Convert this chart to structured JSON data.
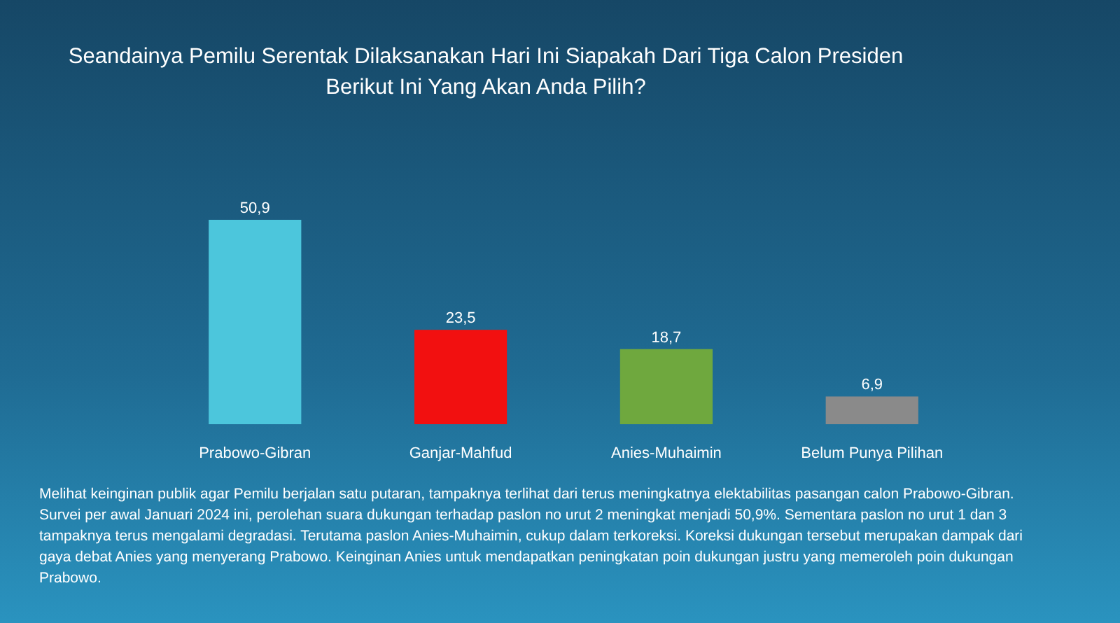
{
  "chart_data": {
    "type": "bar",
    "title": "Seandainya Pemilu Serentak Dilaksanakan Hari Ini Siapakah Dari Tiga Calon Presiden Berikut Ini Yang Akan Anda Pilih?",
    "categories": [
      "Prabowo-Gibran",
      "Ganjar-Mahfud",
      "Anies-Muhaimin",
      "Belum Punya Pilihan"
    ],
    "values": [
      50.9,
      23.5,
      18.7,
      6.9
    ],
    "colors": [
      "#4cc6dc",
      "#f21010",
      "#6fa83e",
      "#8a8a8a"
    ],
    "value_labels": [
      "50,9",
      "23,5",
      "18,7",
      "6,9"
    ],
    "annotations": [
      "Melihat keinginan publik agar Pemilu berjalan satu putaran, tampaknya terlihat dari terus meningkatnya elektabilitas pasangan calon Prabowo-Gibran. Survei per awal Januari 2024 ini, perolehan suara dukungan  terhadap paslon no urut 2 meningkat menjadi 50,9%. Sementara paslon no urut 1 dan 3 tampaknya terus mengalami degradasi. Terutama paslon Anies-Muhaimin, cukup dalam terkoreksi. Koreksi dukungan tersebut merupakan dampak dari gaya debat Anies yang menyerang Prabowo. Keinginan Anies untuk mendapatkan peningkatan poin dukungan justru yang memeroleh poin dukungan Prabowo."
    ]
  }
}
